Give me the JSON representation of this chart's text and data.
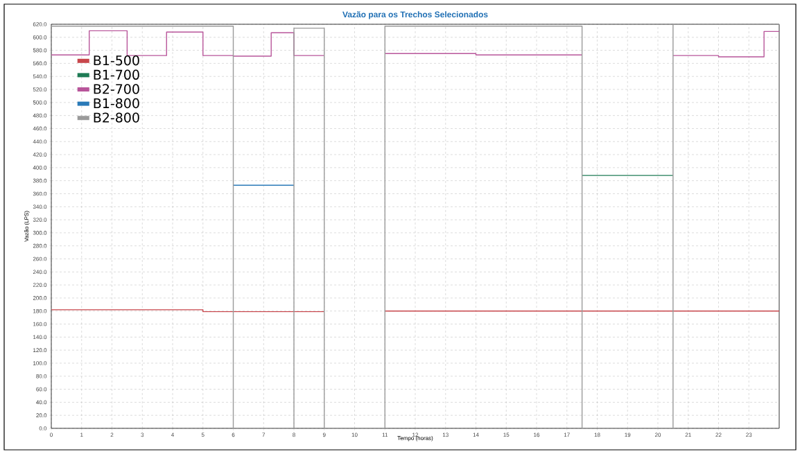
{
  "chart_data": {
    "type": "step",
    "title": "Vazão para os Trechos Selecionados",
    "xlabel": "Tempo (horas)",
    "ylabel": "Vazão (LPS)",
    "xlim": [
      0,
      24
    ],
    "xticks": [
      0,
      1,
      2,
      3,
      4,
      5,
      6,
      7,
      8,
      9,
      10,
      11,
      12,
      13,
      14,
      15,
      16,
      17,
      18,
      19,
      20,
      21,
      22,
      23
    ],
    "ylim": [
      0,
      620
    ],
    "yticks": [
      {
        "value": 0,
        "label": "0.0"
      },
      {
        "value": 20,
        "label": "20.0"
      },
      {
        "value": 40,
        "label": "40.0"
      },
      {
        "value": 60,
        "label": "60.0"
      },
      {
        "value": 80,
        "label": "80.0"
      },
      {
        "value": 100,
        "label": "100.0"
      },
      {
        "value": 120,
        "label": "120.0"
      },
      {
        "value": 140,
        "label": "140.0"
      },
      {
        "value": 160,
        "label": "160.0"
      },
      {
        "value": 180,
        "label": "180.0"
      },
      {
        "value": 200,
        "label": "200.0"
      },
      {
        "value": 220,
        "label": "220.0"
      },
      {
        "value": 240,
        "label": "240.0"
      },
      {
        "value": 260,
        "label": "260.0"
      },
      {
        "value": 280,
        "label": "280.0"
      },
      {
        "value": 300,
        "label": "300.0"
      },
      {
        "value": 320,
        "label": "320.0"
      },
      {
        "value": 340,
        "label": "340.0"
      },
      {
        "value": 360,
        "label": "360.0"
      },
      {
        "value": 380,
        "label": "380.0"
      },
      {
        "value": 400,
        "label": "400.0"
      },
      {
        "value": 420,
        "label": "420.0"
      },
      {
        "value": 440,
        "label": "440.0"
      },
      {
        "value": 460,
        "label": "460.0"
      },
      {
        "value": 480,
        "label": "480.0"
      },
      {
        "value": 500,
        "label": "500.0"
      },
      {
        "value": 520,
        "label": "520.0"
      },
      {
        "value": 540,
        "label": "540.0"
      },
      {
        "value": 560,
        "label": "560.0"
      },
      {
        "value": 580,
        "label": "580.0"
      },
      {
        "value": 600,
        "label": "600.0"
      },
      {
        "value": 620,
        "label": "620.0"
      }
    ],
    "grid": true,
    "legend": "top left",
    "series": [
      {
        "name": "B1-500",
        "color": "#c8464b",
        "x": [
          0,
          5,
          9,
          11,
          24
        ],
        "values": [
          182,
          179,
          null,
          180,
          180
        ]
      },
      {
        "name": "B1-700",
        "color": "#1e7b55",
        "x": [
          17.5,
          20.5
        ],
        "values": [
          388,
          388
        ]
      },
      {
        "name": "B2-700",
        "color": "#b8559a",
        "x": [
          0,
          1.25,
          2.5,
          3.8,
          5,
          6,
          7.25,
          8,
          9,
          11,
          14,
          17.5,
          20.5,
          22,
          23.5,
          24
        ],
        "values": [
          573,
          610,
          572,
          608,
          572,
          571,
          607,
          572,
          null,
          575,
          573,
          null,
          572,
          570,
          609,
          609
        ]
      },
      {
        "name": "B1-800",
        "color": "#2a7ab8",
        "x": [
          6,
          8
        ],
        "values": [
          373,
          373
        ]
      },
      {
        "name": "B2-800",
        "color": "#9a9a9a",
        "x": [
          0,
          6,
          8,
          9,
          11,
          17.5,
          20.5,
          24
        ],
        "values": [
          617,
          0,
          614,
          0,
          617,
          0,
          620,
          620
        ]
      }
    ]
  }
}
